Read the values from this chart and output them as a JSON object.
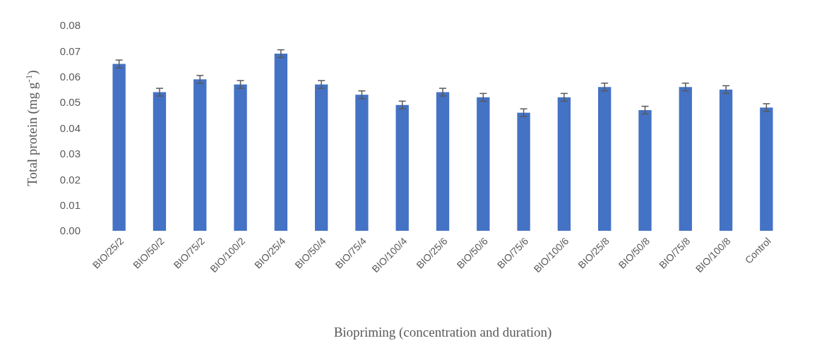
{
  "chart_data": {
    "type": "bar",
    "xlabel": "Biopriming (concentration and duration)",
    "ylabel": "Total protein (mg g$^{-1}$)",
    "categories": [
      "BIO/25/2",
      "BIO/50/2",
      "BIO/75/2",
      "BIO/100/2",
      "BIO/25/4",
      "BIO/50/4",
      "BIO/75/4",
      "BIO/100/4",
      "BIO/25/6",
      "BIO/50/6",
      "BIO/75/6",
      "BIO/100/6",
      "BIO/25/8",
      "BIO/50/8",
      "BIO/75/8",
      "BIO/100/8",
      "Control"
    ],
    "values": [
      0.065,
      0.054,
      0.059,
      0.057,
      0.069,
      0.057,
      0.053,
      0.049,
      0.054,
      0.052,
      0.046,
      0.052,
      0.056,
      0.047,
      0.056,
      0.055,
      0.048
    ],
    "errors": [
      0.0015,
      0.0015,
      0.0015,
      0.0015,
      0.0015,
      0.0015,
      0.0015,
      0.0015,
      0.0015,
      0.0015,
      0.0015,
      0.0015,
      0.0015,
      0.0015,
      0.0015,
      0.0015,
      0.0015
    ],
    "color": "#4472c4",
    "ylim": [
      0,
      0.08
    ],
    "yticks": [
      {
        "value": 0,
        "label": "0.00"
      },
      {
        "value": 0.01,
        "label": "0.01"
      },
      {
        "value": 0.02,
        "label": "0.02"
      },
      {
        "value": 0.03,
        "label": "0.03"
      },
      {
        "value": 0.04,
        "label": "0.04"
      },
      {
        "value": 0.05,
        "label": "0.05"
      },
      {
        "value": 0.06,
        "label": "0.06"
      },
      {
        "value": 0.07,
        "label": "0.07"
      },
      {
        "value": 0.08,
        "label": "0.08"
      }
    ]
  }
}
